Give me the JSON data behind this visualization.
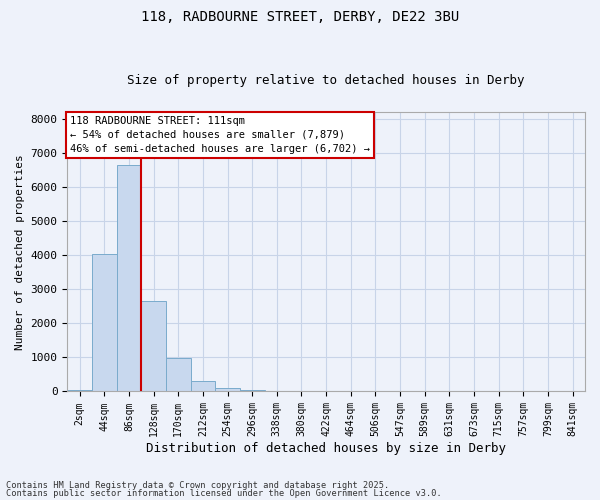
{
  "title1": "118, RADBOURNE STREET, DERBY, DE22 3BU",
  "title2": "Size of property relative to detached houses in Derby",
  "xlabel": "Distribution of detached houses by size in Derby",
  "ylabel": "Number of detached properties",
  "categories": [
    "2sqm",
    "44sqm",
    "86sqm",
    "128sqm",
    "170sqm",
    "212sqm",
    "254sqm",
    "296sqm",
    "338sqm",
    "380sqm",
    "422sqm",
    "464sqm",
    "506sqm",
    "547sqm",
    "589sqm",
    "631sqm",
    "673sqm",
    "715sqm",
    "757sqm",
    "799sqm",
    "841sqm"
  ],
  "values": [
    50,
    4020,
    6650,
    2650,
    970,
    310,
    110,
    55,
    5,
    0,
    0,
    0,
    0,
    0,
    0,
    0,
    0,
    0,
    0,
    0,
    0
  ],
  "bar_color": "#c8d8ee",
  "bar_edge_color": "#7aabcc",
  "vline_x_index": 2,
  "vline_color": "#cc0000",
  "ylim": [
    0,
    8200
  ],
  "yticks": [
    0,
    1000,
    2000,
    3000,
    4000,
    5000,
    6000,
    7000,
    8000
  ],
  "annotation_text": "118 RADBOURNE STREET: 111sqm\n← 54% of detached houses are smaller (7,879)\n46% of semi-detached houses are larger (6,702) →",
  "annotation_box_color": "#ffffff",
  "annotation_box_edge": "#cc0000",
  "footnote1": "Contains HM Land Registry data © Crown copyright and database right 2025.",
  "footnote2": "Contains public sector information licensed under the Open Government Licence v3.0.",
  "grid_color": "#c8d4e8",
  "bg_color": "#eef2fa"
}
